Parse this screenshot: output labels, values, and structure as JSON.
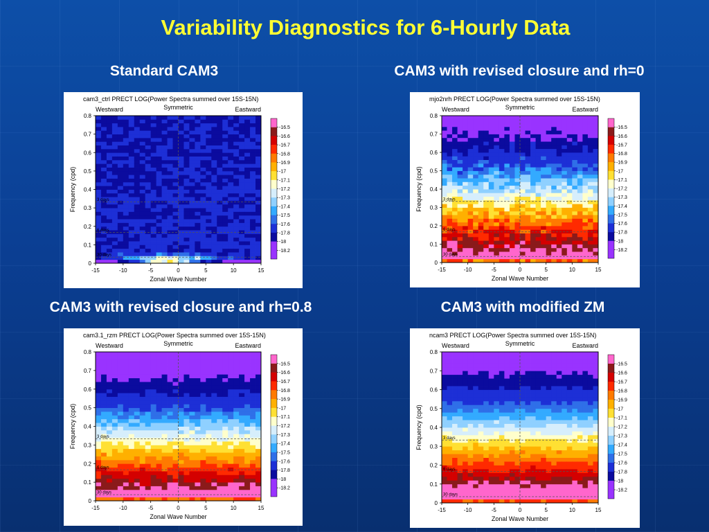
{
  "slide_title": "Variability Diagnostics for 6-Hourly Data",
  "colors": {
    "title": "#ffff33",
    "subtitle": "#ffffff",
    "background": "#0b3f94"
  },
  "colorbar_levels": [
    "-16.5",
    "-16.6",
    "-16.7",
    "-16.8",
    "-16.9",
    "-17",
    "-17.1",
    "-17.2",
    "-17.3",
    "-17.4",
    "-17.5",
    "-17.6",
    "-17.8",
    "-18",
    "-18.2"
  ],
  "colorbar_colors": [
    "#ff66cc",
    "#8b1a1a",
    "#d40000",
    "#ff2a00",
    "#ff7a00",
    "#ffb000",
    "#ffe033",
    "#ffffcc",
    "#d6eefc",
    "#8fd0ff",
    "#33aaff",
    "#2f6fe8",
    "#1d2fd6",
    "#0b0b9e",
    "#9933ff"
  ],
  "chart_data": [
    {
      "type": "heatmap",
      "heading": "Standard CAM3",
      "title": "cam3_ctrl PRECT LOG(Power Spectra summed over 15S-15N)",
      "xlabel": "Zonal Wave Number",
      "ylabel": "Frequency (cpd)",
      "xlim": [
        -15,
        15
      ],
      "ylim": [
        0,
        0.8
      ],
      "x_ticks": [
        "-15",
        "-10",
        "-5",
        "0",
        "5",
        "10",
        "15"
      ],
      "y_ticks": [
        "0",
        "0.1",
        "0.2",
        "0.3",
        "0.4",
        "0.5",
        "0.6",
        "0.7",
        "0.8"
      ],
      "region_labels": {
        "west": "Westward",
        "center": "Symmetric",
        "east": "Eastward"
      },
      "reference_lines": [
        {
          "label": "3 days",
          "y": 0.333
        },
        {
          "label": "6 days",
          "y": 0.167
        },
        {
          "label": "30 days",
          "y": 0.033
        }
      ],
      "profile": {
        "base": -17.75,
        "decay": 0.12,
        "peak": -16.6,
        "peak_width": 0.035,
        "noise": 0.28,
        "x_center": -2
      }
    },
    {
      "type": "heatmap",
      "heading": "CAM3 with revised closure and rh=0",
      "title": "mjo2nrh PRECT LOG(Power Spectra summed over 15S-15N)",
      "xlabel": "Zonal Wave Number",
      "ylabel": "Frequency (cpd)",
      "xlim": [
        -15,
        15
      ],
      "ylim": [
        0,
        0.8
      ],
      "x_ticks": [
        "-15",
        "-10",
        "-5",
        "0",
        "5",
        "10",
        "15"
      ],
      "y_ticks": [
        "0",
        "0.1",
        "0.2",
        "0.3",
        "0.4",
        "0.5",
        "0.6",
        "0.7",
        "0.8"
      ],
      "region_labels": {
        "west": "Westward",
        "center": "Symmetric",
        "east": "Eastward"
      },
      "reference_lines": [
        {
          "label": "3 days",
          "y": 0.333
        },
        {
          "label": "6 days",
          "y": 0.167
        },
        {
          "label": "30 days",
          "y": 0.033
        }
      ],
      "profile": {
        "base": -16.3,
        "decay": 2.45,
        "peak": -16.3,
        "peak_width": 0.2,
        "noise": 0.22,
        "x_center": 0
      }
    },
    {
      "type": "heatmap",
      "heading": "CAM3 with revised closure and rh=0.8",
      "title": "cam3.1_rzm PRECT LOG(Power Spectra summed over 15S-15N)",
      "xlabel": "Zonal Wave Number",
      "ylabel": "Frequency (cpd)",
      "xlim": [
        -15,
        15
      ],
      "ylim": [
        0,
        0.8
      ],
      "x_ticks": [
        "-15",
        "-10",
        "-5",
        "0",
        "5",
        "10",
        "15"
      ],
      "y_ticks": [
        "0",
        "0.1",
        "0.2",
        "0.3",
        "0.4",
        "0.5",
        "0.6",
        "0.7",
        "0.8"
      ],
      "region_labels": {
        "west": "Westward",
        "center": "Symmetric",
        "east": "Eastward"
      },
      "reference_lines": [
        {
          "label": "3 days",
          "y": 0.333
        },
        {
          "label": "6 days",
          "y": 0.167
        },
        {
          "label": "30 days",
          "y": 0.033
        }
      ],
      "profile": {
        "base": -16.3,
        "decay": 2.6,
        "peak": -16.3,
        "peak_width": 0.2,
        "noise": 0.14,
        "x_center": 0
      }
    },
    {
      "type": "heatmap",
      "heading": "CAM3 with modified ZM",
      "title": "ncam3 PRECT LOG(Power Spectra summed over 15S-15N)",
      "xlabel": "Zonal Wave Number",
      "ylabel": "Frequency (cpd)",
      "xlim": [
        -15,
        15
      ],
      "ylim": [
        0,
        0.8
      ],
      "x_ticks": [
        "-15",
        "-10",
        "-5",
        "0",
        "5",
        "10",
        "15"
      ],
      "y_ticks": [
        "0",
        "0.1",
        "0.2",
        "0.3",
        "0.4",
        "0.5",
        "0.6",
        "0.7",
        "0.8"
      ],
      "region_labels": {
        "west": "Westward",
        "center": "Symmetric",
        "east": "Eastward"
      },
      "reference_lines": [
        {
          "label": "3 days",
          "y": 0.333
        },
        {
          "label": "6 days",
          "y": 0.167
        },
        {
          "label": "30 days",
          "y": 0.033
        }
      ],
      "profile": {
        "base": -16.25,
        "decay": 2.55,
        "peak": -16.25,
        "peak_width": 0.2,
        "noise": 0.1,
        "x_center": 0
      }
    }
  ]
}
